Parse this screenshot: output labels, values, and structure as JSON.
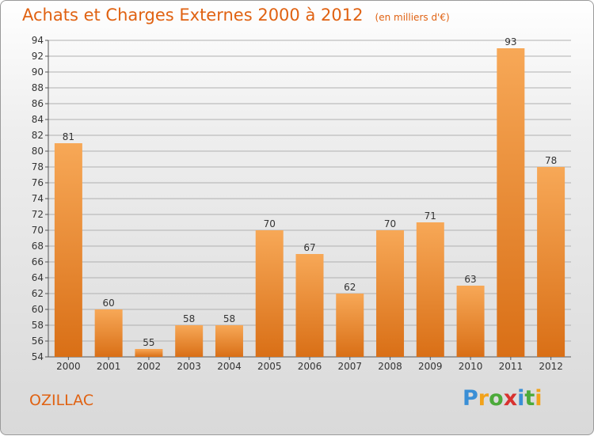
{
  "header": {
    "title": "Achats et Charges Externes 2000 à 2012",
    "subtitle": "(en milliers d'€)"
  },
  "commune": "OZILLAC",
  "logo": {
    "text": "Proxiti",
    "letters": [
      "P",
      "r",
      "o",
      "x",
      "i",
      "t",
      "i"
    ],
    "colors": [
      "#3a8fd6",
      "#f2a21a",
      "#4caa3a",
      "#d8322f",
      "#3a8fd6",
      "#4caa3a",
      "#f2a21a"
    ]
  },
  "colors": {
    "accent": "#e06212",
    "bar_light": "#f7a857",
    "bar_dark": "#d96f16",
    "grid": "#b0b0b0"
  },
  "chart_data": {
    "type": "bar",
    "categories": [
      "2000",
      "2001",
      "2002",
      "2003",
      "2004",
      "2005",
      "2006",
      "2007",
      "2008",
      "2009",
      "2010",
      "2011",
      "2012"
    ],
    "values": [
      81,
      60,
      55,
      58,
      58,
      70,
      67,
      62,
      70,
      71,
      63,
      93,
      78
    ],
    "ylim": [
      54,
      94
    ],
    "yticks": [
      54,
      56,
      58,
      60,
      62,
      64,
      66,
      68,
      70,
      72,
      74,
      76,
      78,
      80,
      82,
      84,
      86,
      88,
      90,
      92,
      94
    ],
    "grid": true
  }
}
